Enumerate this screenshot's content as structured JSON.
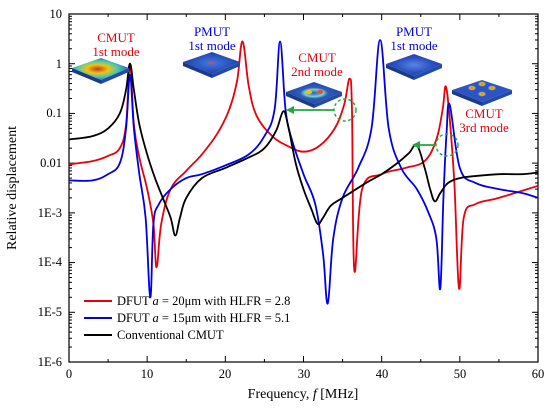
{
  "chart_data": {
    "type": "line",
    "title": "",
    "xlabel": "Frequency, ",
    "xlabel_italic": "f",
    "xlabel_unit": " [MHz]",
    "ylabel": "Relative displacement",
    "xlim": [
      0,
      60
    ],
    "ylim": [
      1e-06,
      10
    ],
    "yscale": "log",
    "grid": false,
    "legend_position": "bottom-left",
    "x_ticks": [
      "0",
      "10",
      "20",
      "30",
      "40",
      "50",
      "60"
    ],
    "y_ticks": [
      "1E-6",
      "1E-5",
      "1E-4",
      "1E-3",
      "0.01",
      "0.1",
      "1",
      "10"
    ],
    "series": [
      {
        "name": "DFUT a = 20μm with HLFR = 2.8",
        "legend_prefix": "DFUT ",
        "legend_var": "a",
        "legend_suffix": " = 20μm with HLFR = 2.8",
        "color": "#e8000b",
        "x": [
          0,
          3,
          5,
          6.5,
          7.3,
          7.8,
          8.3,
          9,
          10,
          10.8,
          11.2,
          11.8,
          13,
          15,
          17,
          19,
          20.5,
          21.5,
          22.2,
          23,
          24,
          26,
          28,
          30,
          32,
          34,
          35.2,
          35.9,
          36.2,
          36.5,
          37.5,
          40,
          43,
          45.5,
          47,
          47.8,
          48.2,
          48.7,
          49.3,
          49.9,
          50.5,
          52,
          55,
          60
        ],
        "y": [
          0.0095,
          0.011,
          0.014,
          0.02,
          0.06,
          1,
          0.06,
          0.013,
          0.003,
          0.0006,
          8e-05,
          0.0006,
          0.003,
          0.007,
          0.015,
          0.04,
          0.12,
          0.45,
          2.8,
          0.35,
          0.09,
          0.035,
          0.022,
          0.017,
          0.022,
          0.05,
          0.15,
          0.5,
          0.12,
          7e-05,
          0.003,
          0.006,
          0.008,
          0.011,
          0.03,
          0.12,
          0.35,
          0.08,
          0.004,
          3e-05,
          0.0008,
          0.0015,
          0.002,
          0.0035
        ]
      },
      {
        "name": "DFUT a = 15μm with HLFR = 5.1",
        "legend_prefix": "DFUT ",
        "legend_var": "a",
        "legend_suffix": " = 15μm with HLFR = 5.1",
        "color": "#0000e8",
        "x": [
          0,
          3,
          5,
          6.5,
          7.3,
          7.8,
          8.3,
          9,
          9.8,
          10.4,
          10.8,
          11.5,
          13,
          15,
          17,
          20,
          23,
          25,
          26.3,
          27,
          27.7,
          28.5,
          30,
          31.5,
          32.5,
          33.1,
          33.8,
          35,
          37,
          38.7,
          39.8,
          40.9,
          42.5,
          44.5,
          46,
          47,
          47.5,
          47.9,
          48.3,
          48.7,
          50,
          52,
          55,
          58,
          60
        ],
        "y": [
          0.0045,
          0.0045,
          0.006,
          0.01,
          0.05,
          0.6,
          0.05,
          0.006,
          0.0008,
          2e-05,
          0.0006,
          0.0015,
          0.003,
          0.005,
          0.006,
          0.009,
          0.015,
          0.035,
          0.12,
          2.8,
          0.12,
          0.03,
          0.006,
          0.0015,
          0.00015,
          1.5e-05,
          0.0003,
          0.002,
          0.008,
          0.05,
          3,
          0.05,
          0.008,
          0.003,
          0.001,
          0.0003,
          3e-05,
          0.002,
          0.04,
          0.15,
          0.008,
          0.004,
          0.003,
          0.0025,
          0.002
        ]
      },
      {
        "name": "Conventional CMUT",
        "legend_prefix": "Conventional CMUT",
        "legend_var": "",
        "legend_suffix": "",
        "color": "#000000",
        "x": [
          0,
          3,
          5,
          6.5,
          7.3,
          7.8,
          8.3,
          9,
          10,
          11,
          12,
          13,
          13.6,
          14.2,
          15,
          17,
          20,
          23,
          25,
          26.5,
          27.4,
          28,
          29,
          30,
          31,
          31.8,
          32.5,
          33.5,
          35,
          38,
          40,
          42,
          43.5,
          44.5,
          45.5,
          46.2,
          46.8,
          47.5,
          48.5,
          50,
          52,
          55,
          58,
          60
        ],
        "y": [
          0.03,
          0.035,
          0.05,
          0.1,
          0.3,
          1,
          0.3,
          0.06,
          0.015,
          0.005,
          0.002,
          0.0008,
          0.00035,
          0.0008,
          0.002,
          0.005,
          0.008,
          0.013,
          0.02,
          0.045,
          0.11,
          0.06,
          0.01,
          0.003,
          0.0012,
          0.0006,
          0.0008,
          0.0014,
          0.002,
          0.004,
          0.006,
          0.01,
          0.016,
          0.023,
          0.008,
          0.003,
          0.0017,
          0.0025,
          0.004,
          0.005,
          0.0055,
          0.006,
          0.006,
          0.0065
        ]
      }
    ],
    "annotations": [
      {
        "lines": [
          "CMUT",
          "1st mode"
        ],
        "color": "#e8000b"
      },
      {
        "lines": [
          "PMUT",
          "1st mode"
        ],
        "color": "#0000e8"
      },
      {
        "lines": [
          "CMUT",
          "2nd mode"
        ],
        "color": "#e8000b"
      },
      {
        "lines": [
          "PMUT",
          "1st mode"
        ],
        "color": "#0000e8"
      },
      {
        "lines": [
          "CMUT",
          "3rd mode"
        ],
        "color": "#e8000b"
      }
    ],
    "arrow_color": "#1faa3c"
  }
}
